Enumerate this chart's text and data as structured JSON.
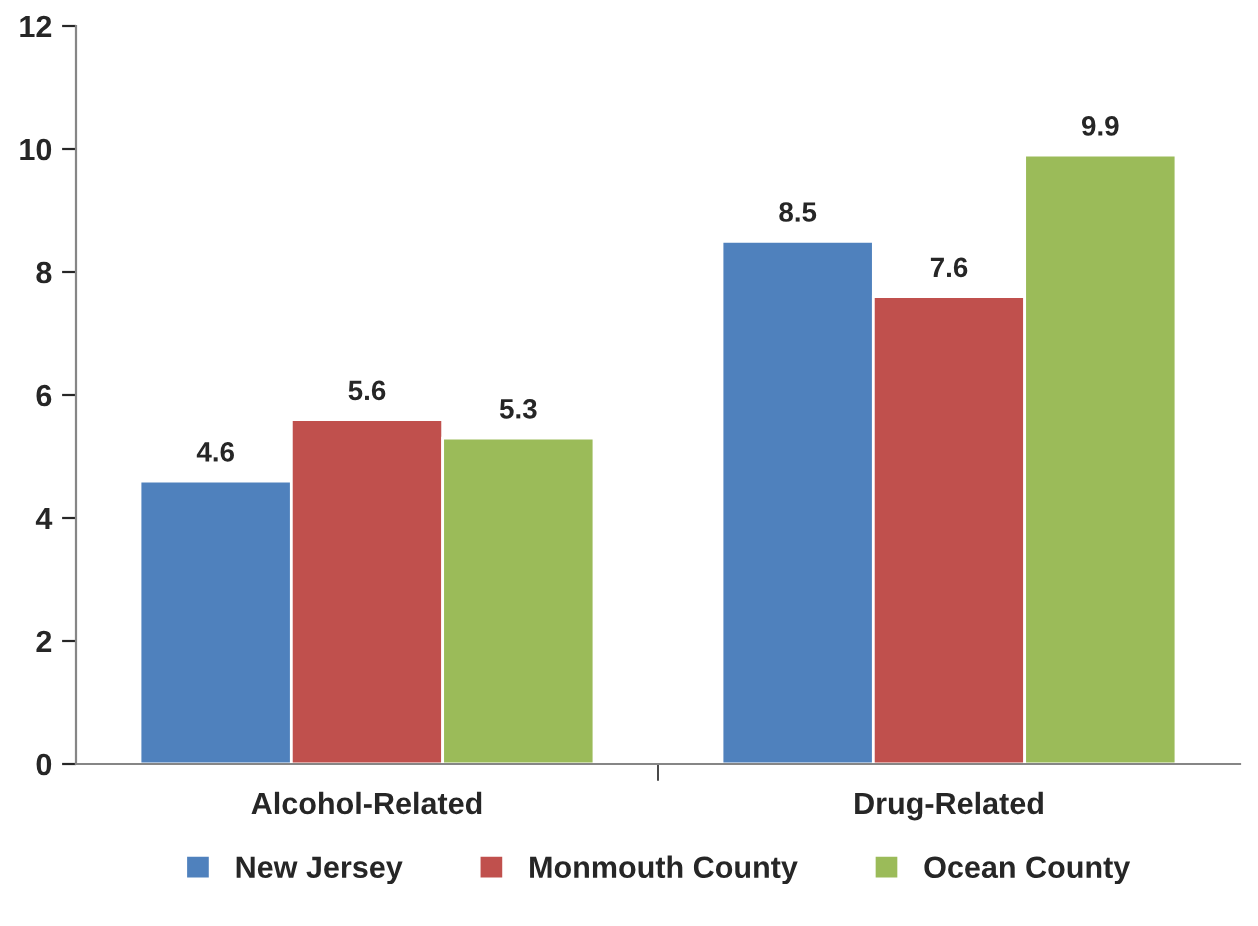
{
  "chart_data": {
    "type": "bar",
    "categories": [
      "Alcohol-Related",
      "Drug-Related"
    ],
    "series": [
      {
        "name": "New Jersey",
        "color": "#4f81bd",
        "values": [
          4.6,
          8.5
        ]
      },
      {
        "name": "Monmouth County",
        "color": "#c0504d",
        "values": [
          5.6,
          7.6
        ]
      },
      {
        "name": "Ocean County",
        "color": "#9bbb59",
        "values": [
          5.3,
          9.9
        ]
      }
    ],
    "ylim": [
      0,
      12
    ],
    "yticks": [
      0,
      2,
      4,
      6,
      8,
      10,
      12
    ],
    "grid": false,
    "legend": "bottom",
    "data_labels": true
  }
}
